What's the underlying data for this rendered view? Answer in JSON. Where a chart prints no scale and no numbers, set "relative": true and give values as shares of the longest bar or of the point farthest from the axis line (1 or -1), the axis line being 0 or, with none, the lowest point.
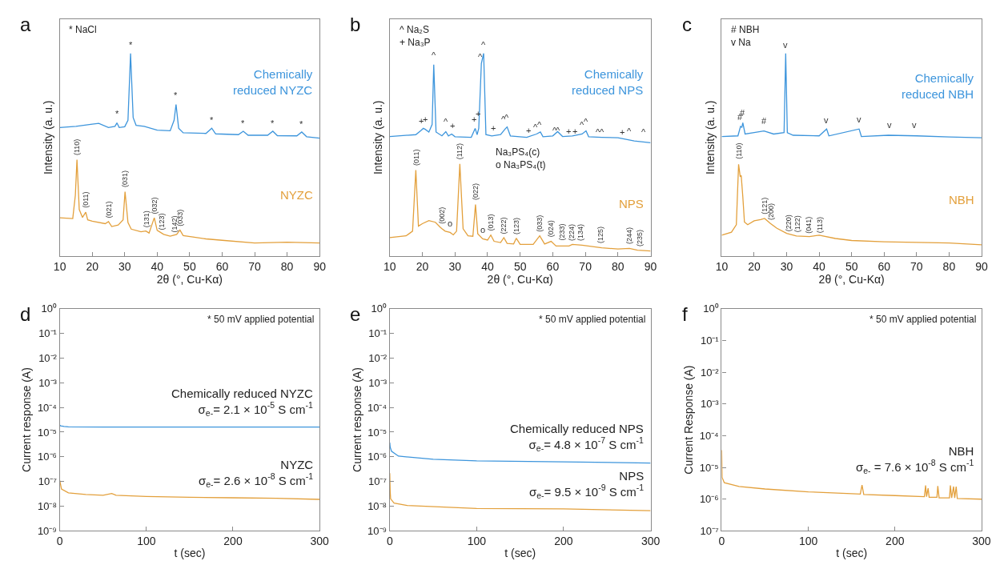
{
  "chart_data": [
    {
      "type": "line",
      "title": "a",
      "xlabel": "2θ (°, Cu-Kα)",
      "ylabel": "Intensity (a. u.)",
      "relative": true,
      "tick_labels": "x",
      "xlim": [
        10,
        90
      ],
      "xticks": [
        10,
        20,
        30,
        40,
        50,
        60,
        70,
        80,
        90
      ],
      "series": [
        {
          "name": "Chemically\nreduced NYZC",
          "color": "#3d95dc",
          "x": [
            10,
            15,
            20,
            22,
            25,
            27,
            27.6,
            28.3,
            30,
            31,
            31.8,
            32.6,
            33.5,
            36,
            40,
            44,
            45.2,
            45.8,
            46.6,
            48,
            55,
            56.8,
            58,
            65,
            66.5,
            68,
            74,
            75.6,
            77,
            83,
            84.5,
            86,
            90
          ],
          "values": [
            0.634,
            0.64,
            0.651,
            0.655,
            0.634,
            0.64,
            0.657,
            0.634,
            0.638,
            0.67,
            1.0,
            0.683,
            0.645,
            0.64,
            0.621,
            0.618,
            0.67,
            0.748,
            0.631,
            0.608,
            0.605,
            0.631,
            0.603,
            0.599,
            0.616,
            0.596,
            0.596,
            0.616,
            0.594,
            0.593,
            0.612,
            0.589,
            0.582
          ]
        },
        {
          "name": "NYZC",
          "color": "#e3a03c",
          "x": [
            10,
            14,
            14.8,
            15.3,
            16,
            17,
            18,
            18.6,
            20,
            24,
            25,
            26,
            28,
            29.5,
            30.1,
            31,
            32,
            35,
            36.5,
            37.5,
            39.1,
            40,
            42,
            44,
            46,
            47,
            48,
            51,
            55,
            60,
            70,
            80,
            90
          ],
          "values": [
            0.189,
            0.185,
            0.3,
            0.476,
            0.23,
            0.191,
            0.217,
            0.179,
            0.172,
            0.16,
            0.17,
            0.146,
            0.153,
            0.179,
            0.318,
            0.166,
            0.133,
            0.12,
            0.124,
            0.114,
            0.189,
            0.127,
            0.107,
            0.098,
            0.107,
            0.129,
            0.101,
            0.094,
            0.085,
            0.078,
            0.065,
            0.069,
            0.065
          ]
        }
      ],
      "annotations": [
        "* NaCl",
        {
          "text": "*",
          "x": 27.6,
          "y": 0.67
        },
        {
          "text": "*",
          "x": 31.8,
          "y": 1.01
        },
        {
          "text": "*",
          "x": 45.8,
          "y": 0.76
        },
        {
          "text": "*",
          "x": 56.8,
          "y": 0.64
        },
        {
          "text": "*",
          "x": 66.5,
          "y": 0.625
        },
        {
          "text": "*",
          "x": 75.6,
          "y": 0.625
        },
        {
          "text": "*",
          "x": 84.5,
          "y": 0.62
        },
        {
          "text": "(110)",
          "x": 15.3,
          "y": 0.49
        },
        {
          "text": "(011)",
          "x": 18,
          "y": 0.23
        },
        {
          "text": "(021)",
          "x": 25,
          "y": 0.18
        },
        {
          "text": "(031)",
          "x": 30.1,
          "y": 0.33
        },
        {
          "text": "(131)",
          "x": 36.7,
          "y": 0.135
        },
        {
          "text": "(032)",
          "x": 39.1,
          "y": 0.2
        },
        {
          "text": "(123)",
          "x": 41.5,
          "y": 0.12
        },
        {
          "text": "(142)",
          "x": 45.3,
          "y": 0.11
        },
        {
          "text": "(033)",
          "x": 47,
          "y": 0.14
        }
      ]
    },
    {
      "type": "line",
      "title": "b",
      "xlabel": "2θ (°, Cu-Kα)",
      "ylabel": "Intensity (a. u.)",
      "relative": true,
      "tick_labels": "x",
      "xlim": [
        10,
        90
      ],
      "xticks": [
        10,
        20,
        30,
        40,
        50,
        60,
        70,
        80,
        90
      ],
      "series": [
        {
          "name": "Chemically\nreduced NPS",
          "color": "#3d95dc",
          "x": [
            10,
            18,
            19.6,
            20.3,
            20.9,
            22,
            23,
            23.5,
            24.2,
            26,
            27.2,
            28,
            29,
            30,
            35,
            36.2,
            36.8,
            37.3,
            38.1,
            38.8,
            39.5,
            41.3,
            44,
            45.4,
            46,
            47,
            52,
            55,
            56.2,
            57,
            60,
            61.5,
            63,
            66,
            69,
            70.2,
            71,
            75,
            80,
            85,
            90
          ],
          "values": [
            0.59,
            0.599,
            0.62,
            0.63,
            0.625,
            0.612,
            0.649,
            0.944,
            0.612,
            0.593,
            0.614,
            0.593,
            0.602,
            0.589,
            0.586,
            0.63,
            0.599,
            0.63,
            0.95,
            1.0,
            0.599,
            0.593,
            0.599,
            0.627,
            0.637,
            0.593,
            0.586,
            0.602,
            0.612,
            0.589,
            0.593,
            0.614,
            0.59,
            0.593,
            0.602,
            0.618,
            0.589,
            0.586,
            0.584,
            0.568,
            0.559
          ]
        },
        {
          "name": "NPS",
          "color": "#e3a03c",
          "x": [
            10,
            15,
            17,
            18,
            18.8,
            20,
            22,
            24,
            25.5,
            26,
            27,
            28.5,
            29.5,
            30.5,
            31.5,
            32.5,
            34,
            35.5,
            36.3,
            37,
            38.5,
            40,
            41,
            42,
            44,
            45,
            46,
            48,
            48.8,
            50,
            54,
            56,
            57.5,
            59.5,
            61,
            65,
            66,
            69,
            75,
            80,
            83.5,
            86,
            90
          ],
          "values": [
            0.091,
            0.1,
            0.123,
            0.424,
            0.148,
            0.16,
            0.175,
            0.167,
            0.142,
            0.135,
            0.123,
            0.117,
            0.105,
            0.123,
            0.455,
            0.135,
            0.1,
            0.098,
            0.254,
            0.11,
            0.085,
            0.079,
            0.104,
            0.073,
            0.067,
            0.091,
            0.063,
            0.06,
            0.088,
            0.058,
            0.058,
            0.1,
            0.06,
            0.073,
            0.05,
            0.05,
            0.058,
            0.054,
            0.041,
            0.035,
            0.038,
            0.029,
            0.025
          ]
        }
      ],
      "annotations": [
        "^ Na₂S\n+ Na₃P",
        "Na₃PS₄(c)\no Na₃PS₄(t)",
        {
          "text": "+",
          "x": 19.6,
          "y": 0.635
        },
        {
          "text": "+",
          "x": 20.9,
          "y": 0.645
        },
        {
          "text": "^",
          "x": 23.6,
          "y": 0.96
        },
        {
          "text": "^",
          "x": 27.3,
          "y": 0.63
        },
        {
          "text": "+",
          "x": 29.2,
          "y": 0.61
        },
        {
          "text": "+",
          "x": 35.9,
          "y": 0.645
        },
        {
          "text": "+",
          "x": 37.1,
          "y": 0.67
        },
        {
          "text": "^",
          "x": 37.8,
          "y": 0.95
        },
        {
          "text": "^",
          "x": 38.8,
          "y": 1.01
        },
        {
          "text": "+",
          "x": 41.8,
          "y": 0.6
        },
        {
          "text": "^",
          "x": 44.8,
          "y": 0.645
        },
        {
          "text": "^",
          "x": 45.9,
          "y": 0.65
        },
        {
          "text": "+",
          "x": 52.6,
          "y": 0.59
        },
        {
          "text": "^",
          "x": 54.7,
          "y": 0.605
        },
        {
          "text": "^",
          "x": 56,
          "y": 0.615
        },
        {
          "text": "^",
          "x": 60.6,
          "y": 0.59
        },
        {
          "text": "^",
          "x": 61.6,
          "y": 0.59
        },
        {
          "text": "+",
          "x": 64.9,
          "y": 0.585
        },
        {
          "text": "+",
          "x": 66.7,
          "y": 0.585
        },
        {
          "text": "^",
          "x": 68.9,
          "y": 0.615
        },
        {
          "text": "^",
          "x": 70.1,
          "y": 0.63
        },
        {
          "text": "^",
          "x": 74,
          "y": 0.58
        },
        {
          "text": "^",
          "x": 75.2,
          "y": 0.58
        },
        {
          "text": "+",
          "x": 81.3,
          "y": 0.58
        },
        {
          "text": "^",
          "x": 83.5,
          "y": 0.585
        },
        {
          "text": "^",
          "x": 87.9,
          "y": 0.58
        },
        {
          "text": "o",
          "x": 28.5,
          "y": 0.13
        },
        {
          "text": "o",
          "x": 38.5,
          "y": 0.1
        },
        {
          "text": "(011)",
          "x": 18,
          "y": 0.44
        },
        {
          "text": "(002)",
          "x": 25.8,
          "y": 0.15
        },
        {
          "text": "(112)",
          "x": 31.5,
          "y": 0.47
        },
        {
          "text": "(022)",
          "x": 36.3,
          "y": 0.27
        },
        {
          "text": "(013)",
          "x": 41,
          "y": 0.115
        },
        {
          "text": "(222)",
          "x": 45,
          "y": 0.1
        },
        {
          "text": "(123)",
          "x": 48.8,
          "y": 0.1
        },
        {
          "text": "(033)",
          "x": 56,
          "y": 0.11
        },
        {
          "text": "(024)",
          "x": 59.5,
          "y": 0.085
        },
        {
          "text": "(233)",
          "x": 62.8,
          "y": 0.07
        },
        {
          "text": "(224)",
          "x": 65.8,
          "y": 0.065
        },
        {
          "text": "(134)",
          "x": 68.5,
          "y": 0.065
        },
        {
          "text": "(125)",
          "x": 74.5,
          "y": 0.055
        },
        {
          "text": "(244)",
          "x": 83.5,
          "y": 0.05
        },
        {
          "text": "(235)",
          "x": 86.8,
          "y": 0.04
        }
      ]
    },
    {
      "type": "line",
      "title": "c",
      "xlabel": "2θ (°, Cu-Kα)",
      "ylabel": "Intensity (a. u.)",
      "relative": true,
      "tick_labels": "x",
      "xlim": [
        10,
        90
      ],
      "xticks": [
        10,
        20,
        30,
        40,
        50,
        60,
        70,
        80,
        90
      ],
      "series": [
        {
          "name": "Chemically\nreduced NBH",
          "color": "#3d95dc",
          "x": [
            10,
            15,
            15.8,
            16.2,
            16.5,
            17.2,
            20,
            23,
            26,
            29.2,
            29.7,
            30.2,
            32,
            40,
            42.3,
            43,
            52.3,
            53,
            61.3,
            70,
            80,
            90
          ],
          "values": [
            0.59,
            0.593,
            0.64,
            0.634,
            0.658,
            0.602,
            0.609,
            0.617,
            0.602,
            0.609,
            1.0,
            0.609,
            0.596,
            0.593,
            0.627,
            0.593,
            0.627,
            0.59,
            0.596,
            0.593,
            0.588,
            0.584
          ]
        },
        {
          "name": "NBH",
          "color": "#e3a03c",
          "x": [
            10,
            13,
            14.5,
            15.2,
            15.7,
            16,
            16.5,
            17,
            18,
            20,
            22,
            23.2,
            25,
            27,
            30,
            33,
            37,
            40,
            45,
            50,
            60,
            70,
            80,
            90
          ],
          "values": [
            0.103,
            0.118,
            0.155,
            0.453,
            0.391,
            0.398,
            0.292,
            0.168,
            0.155,
            0.174,
            0.18,
            0.186,
            0.161,
            0.137,
            0.112,
            0.099,
            0.096,
            0.103,
            0.087,
            0.077,
            0.071,
            0.068,
            0.065,
            0.056
          ]
        }
      ],
      "annotations": [
        "# NBH\nv Na",
        {
          "text": "#",
          "x": 15.8,
          "y": 0.655
        },
        {
          "text": "#",
          "x": 16.5,
          "y": 0.675
        },
        {
          "text": "#",
          "x": 23.2,
          "y": 0.635
        },
        {
          "text": "v",
          "x": 29.6,
          "y": 1.01
        },
        {
          "text": "v",
          "x": 42.3,
          "y": 0.64
        },
        {
          "text": "v",
          "x": 52.4,
          "y": 0.645
        },
        {
          "text": "v",
          "x": 61.6,
          "y": 0.615
        },
        {
          "text": "v",
          "x": 69.2,
          "y": 0.615
        },
        {
          "text": "(110)",
          "x": 15.3,
          "y": 0.47
        },
        {
          "text": "(121)",
          "x": 23.2,
          "y": 0.2
        },
        {
          "text": "(200)",
          "x": 25.3,
          "y": 0.17
        },
        {
          "text": "(220)",
          "x": 30.8,
          "y": 0.115
        },
        {
          "text": "(122)",
          "x": 33.2,
          "y": 0.11
        },
        {
          "text": "(041)",
          "x": 36.7,
          "y": 0.105
        },
        {
          "text": "(113)",
          "x": 40.2,
          "y": 0.105
        }
      ]
    },
    {
      "type": "line",
      "title": "d",
      "xlabel": "t (sec)",
      "ylabel": "Current response (A)",
      "log": "y",
      "xlim": [
        0,
        300
      ],
      "xticks": [
        0,
        100,
        200,
        300
      ],
      "ylim": [
        1e-09,
        1
      ],
      "yticks": [
        {
          "value": 1,
          "label": "10⁰"
        },
        {
          "value": 0.1,
          "label": "10⁻¹"
        },
        {
          "value": 0.01,
          "label": "10⁻²"
        },
        {
          "value": 0.001,
          "label": "10⁻³"
        },
        {
          "value": 0.0001,
          "label": "10⁻⁴"
        },
        {
          "value": 1e-05,
          "label": "10⁻⁵"
        },
        {
          "value": 1e-06,
          "label": "10⁻⁶"
        },
        {
          "value": 1e-07,
          "label": "10⁻⁷"
        },
        {
          "value": 1e-08,
          "label": "10⁻⁸"
        },
        {
          "value": 1e-09,
          "label": "10⁻⁹"
        }
      ],
      "series": [
        {
          "name": "Chemically reduced NYZC\nσ$_{e-}$= 2.1 × 10$^{-5}$ S cm$^{-1}$",
          "color": "#3d95dc",
          "x": [
            0,
            1,
            5,
            10,
            50,
            100,
            150,
            200,
            250,
            300
          ],
          "values": [
            1.9e-05,
            1.8e-05,
            1.7e-05,
            1.65e-05,
            1.6e-05,
            1.6e-05,
            1.6e-05,
            1.6e-05,
            1.6e-05,
            1.6e-05
          ]
        },
        {
          "name": "NYZC\nσ$_{e-}$= 2.6 × 10$^{-8}$ S cm$^{-1}$",
          "color": "#e3a03c",
          "x": [
            0,
            2,
            10,
            30,
            50,
            60,
            65,
            100,
            150,
            200,
            250,
            300
          ],
          "values": [
            1.1e-07,
            5e-08,
            3.5e-08,
            3e-08,
            2.8e-08,
            3.3e-08,
            2.8e-08,
            2.5e-08,
            2.3e-08,
            2.2e-08,
            2.1e-08,
            1.9e-08
          ]
        }
      ],
      "annotations": [
        "* 50 mV applied potential"
      ]
    },
    {
      "type": "line",
      "title": "e",
      "xlabel": "t (sec)",
      "ylabel": "Current response (A)",
      "log": "y",
      "xlim": [
        0,
        300
      ],
      "xticks": [
        0,
        100,
        200,
        300
      ],
      "ylim": [
        1e-09,
        1
      ],
      "yticks": [
        {
          "value": 1,
          "label": "10⁰"
        },
        {
          "value": 0.1,
          "label": "10⁻¹"
        },
        {
          "value": 0.01,
          "label": "10⁻²"
        },
        {
          "value": 0.001,
          "label": "10⁻³"
        },
        {
          "value": 0.0001,
          "label": "10⁻⁴"
        },
        {
          "value": 1e-05,
          "label": "10⁻⁵"
        },
        {
          "value": 1e-06,
          "label": "10⁻⁶"
        },
        {
          "value": 1e-07,
          "label": "10⁻⁷"
        },
        {
          "value": 1e-08,
          "label": "10⁻⁸"
        },
        {
          "value": 1e-09,
          "label": "10⁻⁹"
        }
      ],
      "series": [
        {
          "name": "Chemically reduced NPS\nσ$_{e-}$= 4.8 × 10$^{-7}$ S cm$^{-1}$",
          "color": "#3d95dc",
          "x": [
            0,
            0.5,
            2,
            10,
            50,
            100,
            200,
            300
          ],
          "values": [
            3.8e-06,
            2.5e-06,
            1.7e-06,
            1.07e-06,
            8e-07,
            6.9e-07,
            6.3e-07,
            5.6e-07
          ]
        },
        {
          "name": "NPS\nσ$_{e-}$= 9.5 × 10$^{-9}$ S cm$^{-1}$",
          "color": "#e3a03c",
          "x": [
            0,
            0.5,
            1,
            5,
            20,
            100,
            200,
            300
          ],
          "values": [
            2.2e-07,
            4e-08,
            2e-08,
            1.35e-08,
            1.07e-08,
            8.1e-09,
            7.8e-09,
            6.6e-09
          ]
        }
      ],
      "annotations": [
        "* 50 mV applied potential"
      ]
    },
    {
      "type": "line",
      "title": "f",
      "xlabel": "t (sec)",
      "ylabel": "Current Response (A)",
      "log": "y",
      "xlim": [
        0,
        300
      ],
      "xticks": [
        0,
        100,
        200,
        300
      ],
      "ylim": [
        1e-07,
        1
      ],
      "yticks": [
        {
          "value": 1,
          "label": "10⁰"
        },
        {
          "value": 0.1,
          "label": "10⁻¹"
        },
        {
          "value": 0.01,
          "label": "10⁻²"
        },
        {
          "value": 0.001,
          "label": "10⁻³"
        },
        {
          "value": 0.0001,
          "label": "10⁻⁴"
        },
        {
          "value": 1e-05,
          "label": "10⁻⁵"
        },
        {
          "value": 1e-06,
          "label": "10⁻⁶"
        },
        {
          "value": 1e-07,
          "label": "10⁻⁷"
        }
      ],
      "series": [
        {
          "name": "NBH\nσ$_{e-}$ = 7.6 × 10$^{-8}$ S cm$^{-1}$",
          "color": "#e3a03c",
          "x": [
            0,
            0.5,
            3,
            20,
            50,
            100,
            150,
            160,
            162,
            164,
            200,
            234,
            235.4,
            236.5,
            238.3,
            239.5,
            248.5,
            249.5,
            251,
            263,
            264,
            265.5,
            267.7,
            269,
            270.7,
            272,
            300
          ],
          "values": [
            3.5e-05,
            4.8e-06,
            3.3e-06,
            2.5e-06,
            2.1e-06,
            1.7e-06,
            1.5e-06,
            1.45e-06,
            2.8e-06,
            1.4e-06,
            1.3e-06,
            1.2e-06,
            2.7e-06,
            1.2e-06,
            2.2e-06,
            1.15e-06,
            1.15e-06,
            2.6e-06,
            1.1e-06,
            1.1e-06,
            2.7e-06,
            1.1e-06,
            2.5e-06,
            1.1e-06,
            2.5e-06,
            1.05e-06,
            1e-06
          ]
        }
      ],
      "annotations": [
        "* 50 mV applied potential"
      ]
    }
  ]
}
